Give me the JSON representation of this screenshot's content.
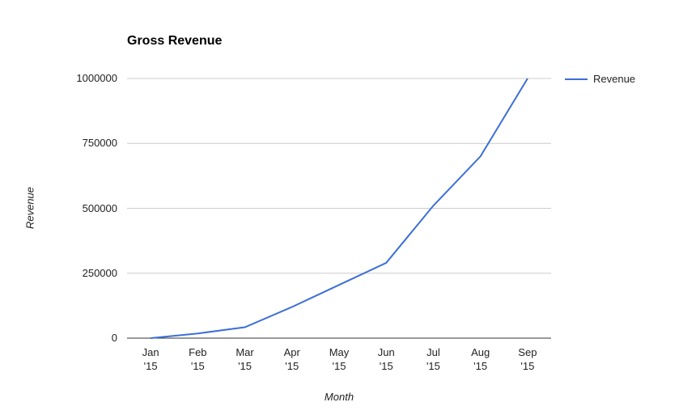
{
  "title": "Gross Revenue",
  "legend": {
    "label": "Revenue"
  },
  "colors": {
    "line": "#3d6fd6",
    "grid": "#cccccc",
    "axis": "#333333",
    "text": "#222222"
  },
  "chart_data": {
    "type": "line",
    "title": "Gross Revenue",
    "xlabel": "Month",
    "ylabel": "Revenue",
    "categories": [
      "Jan '15",
      "Feb '15",
      "Mar '15",
      "Apr '15",
      "May '15",
      "Jun '15",
      "Jul '15",
      "Aug '15",
      "Sep '15"
    ],
    "series": [
      {
        "name": "Revenue",
        "values": [
          0,
          18000,
          42000,
          120000,
          205000,
          290000,
          510000,
          700000,
          1000000
        ]
      }
    ],
    "ylim": [
      0,
      1000000
    ],
    "yticks": [
      0,
      250000,
      500000,
      750000,
      1000000
    ],
    "grid": true,
    "legend_position": "right"
  }
}
